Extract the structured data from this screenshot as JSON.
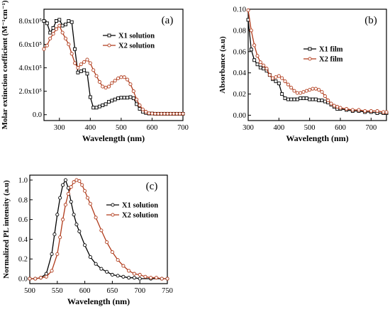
{
  "chart_data": [
    {
      "type": "line",
      "panel_label": "(a)",
      "xlabel": "Wavelength (nm)",
      "ylabel": "Molar extinction coefficient (M⁻¹cm⁻¹)",
      "xlim": [
        250,
        700
      ],
      "ylim": [
        -50000,
        900000
      ],
      "xticks": [
        300,
        400,
        500,
        600,
        700
      ],
      "yticks": [
        0,
        200000,
        400000,
        600000,
        800000
      ],
      "ytick_labels": [
        "0.0",
        "2.0x10⁵",
        "4.0x10⁵",
        "6.0x10⁵",
        "8.0x10⁵"
      ],
      "legend_position": "top-right",
      "series": [
        {
          "name": "X1 solution",
          "color": "#000000",
          "marker": "square-open",
          "x": [
            250,
            260,
            270,
            280,
            290,
            300,
            310,
            320,
            330,
            340,
            350,
            360,
            370,
            380,
            390,
            400,
            410,
            420,
            430,
            440,
            450,
            460,
            470,
            480,
            490,
            500,
            510,
            520,
            530,
            540,
            550,
            560,
            570,
            580,
            590,
            600,
            610,
            620,
            630,
            640,
            650,
            660,
            670,
            680,
            690,
            700
          ],
          "y": [
            800000,
            780000,
            700000,
            740000,
            800000,
            810000,
            760000,
            770000,
            800000,
            790000,
            560000,
            360000,
            370000,
            380000,
            350000,
            150000,
            60000,
            60000,
            70000,
            80000,
            90000,
            110000,
            120000,
            130000,
            140000,
            145000,
            145000,
            145000,
            150000,
            140000,
            90000,
            50000,
            25000,
            15000,
            10000,
            10000,
            8000,
            8000,
            8000,
            8000,
            8000,
            8000,
            8000,
            8000,
            8000,
            8000
          ]
        },
        {
          "name": "X2 solution",
          "color": "#b03a1a",
          "marker": "circle-open",
          "x": [
            250,
            260,
            270,
            280,
            290,
            300,
            310,
            320,
            330,
            340,
            350,
            360,
            370,
            380,
            390,
            400,
            410,
            420,
            430,
            440,
            450,
            460,
            470,
            480,
            490,
            500,
            510,
            520,
            530,
            540,
            550,
            560,
            570,
            580,
            590,
            600,
            610,
            620,
            630,
            640,
            650,
            660,
            670,
            680,
            690,
            700
          ],
          "y": [
            560000,
            590000,
            650000,
            690000,
            730000,
            760000,
            700000,
            650000,
            600000,
            520000,
            440000,
            400000,
            430000,
            450000,
            470000,
            440000,
            380000,
            330000,
            280000,
            240000,
            230000,
            240000,
            270000,
            290000,
            310000,
            320000,
            320000,
            300000,
            260000,
            200000,
            130000,
            80000,
            45000,
            25000,
            12000,
            10000,
            8000,
            8000,
            8000,
            8000,
            8000,
            8000,
            8000,
            8000,
            8000,
            8000
          ]
        }
      ]
    },
    {
      "type": "line",
      "panel_label": "(b)",
      "xlabel": "Wavelength (nm)",
      "ylabel": "Absorbance (a.u)",
      "xlim": [
        300,
        750
      ],
      "ylim": [
        -0.005,
        0.1
      ],
      "xticks": [
        300,
        400,
        500,
        600,
        700
      ],
      "yticks": [
        0.0,
        0.02,
        0.04,
        0.06,
        0.08,
        0.1
      ],
      "ytick_labels": [
        "0.00",
        "0.02",
        "0.04",
        "0.06",
        "0.08",
        "0.10"
      ],
      "legend_position": "top-right",
      "series": [
        {
          "name": "X1 film",
          "color": "#000000",
          "marker": "square-open",
          "x": [
            300,
            310,
            320,
            330,
            340,
            350,
            360,
            370,
            380,
            390,
            400,
            410,
            420,
            430,
            440,
            450,
            460,
            470,
            480,
            490,
            500,
            510,
            520,
            530,
            540,
            550,
            560,
            570,
            580,
            590,
            600,
            620,
            640,
            660,
            680,
            700,
            720,
            740,
            750
          ],
          "y": [
            0.09,
            0.062,
            0.052,
            0.048,
            0.045,
            0.044,
            0.042,
            0.038,
            0.034,
            0.032,
            0.03,
            0.02,
            0.016,
            0.015,
            0.015,
            0.015,
            0.015,
            0.016,
            0.016,
            0.016,
            0.015,
            0.015,
            0.015,
            0.014,
            0.014,
            0.013,
            0.012,
            0.01,
            0.008,
            0.006,
            0.006,
            0.005,
            0.004,
            0.004,
            0.003,
            0.003,
            0.002,
            0.002,
            0.002
          ]
        },
        {
          "name": "X2 film",
          "color": "#b03a1a",
          "marker": "circle-open",
          "x": [
            300,
            310,
            320,
            330,
            340,
            350,
            360,
            370,
            380,
            390,
            400,
            410,
            420,
            430,
            440,
            450,
            460,
            470,
            480,
            490,
            500,
            510,
            520,
            530,
            540,
            550,
            560,
            570,
            580,
            590,
            600,
            620,
            640,
            660,
            680,
            700,
            720,
            740,
            750
          ],
          "y": [
            0.099,
            0.08,
            0.066,
            0.056,
            0.05,
            0.047,
            0.044,
            0.038,
            0.035,
            0.036,
            0.037,
            0.035,
            0.032,
            0.029,
            0.026,
            0.023,
            0.021,
            0.021,
            0.022,
            0.023,
            0.024,
            0.025,
            0.025,
            0.024,
            0.022,
            0.018,
            0.014,
            0.011,
            0.009,
            0.008,
            0.007,
            0.006,
            0.005,
            0.005,
            0.004,
            0.004,
            0.004,
            0.003,
            0.003
          ]
        }
      ]
    },
    {
      "type": "line",
      "panel_label": "(c)",
      "xlabel": "Wavelength (nm)",
      "ylabel": "Normalized PL intensity (a.u)",
      "xlim": [
        500,
        750
      ],
      "ylim": [
        -0.05,
        1.05
      ],
      "xticks": [
        500,
        550,
        600,
        650,
        700,
        750
      ],
      "yticks": [
        0.0,
        0.2,
        0.4,
        0.6,
        0.8,
        1.0
      ],
      "ytick_labels": [
        "0.0",
        "0.2",
        "0.4",
        "0.6",
        "0.8",
        "1.0"
      ],
      "legend_position": "top-right",
      "series": [
        {
          "name": "X1 solution",
          "color": "#000000",
          "marker": "circle-open",
          "x": [
            500,
            510,
            520,
            530,
            540,
            545,
            550,
            555,
            560,
            565,
            570,
            575,
            580,
            585,
            590,
            600,
            610,
            620,
            630,
            640,
            650,
            660,
            670,
            680,
            690,
            700,
            720,
            740,
            750
          ],
          "y": [
            0.0,
            0.0,
            0.01,
            0.05,
            0.25,
            0.45,
            0.65,
            0.82,
            0.95,
            1.0,
            0.92,
            0.78,
            0.65,
            0.55,
            0.48,
            0.34,
            0.22,
            0.15,
            0.1,
            0.07,
            0.04,
            0.03,
            0.02,
            0.01,
            0.01,
            0.0,
            0.0,
            0.0,
            0.0
          ]
        },
        {
          "name": "X2 solution",
          "color": "#b03a1a",
          "marker": "circle-open",
          "x": [
            500,
            510,
            520,
            530,
            540,
            550,
            555,
            560,
            565,
            570,
            575,
            580,
            585,
            590,
            595,
            600,
            605,
            610,
            620,
            630,
            640,
            650,
            660,
            670,
            680,
            690,
            700,
            710,
            720,
            730,
            740,
            750
          ],
          "y": [
            0.0,
            0.0,
            0.01,
            0.02,
            0.08,
            0.25,
            0.42,
            0.6,
            0.75,
            0.86,
            0.93,
            0.98,
            1.0,
            0.99,
            0.95,
            0.89,
            0.82,
            0.76,
            0.62,
            0.49,
            0.37,
            0.27,
            0.19,
            0.13,
            0.08,
            0.05,
            0.04,
            0.02,
            0.01,
            0.01,
            0.0,
            0.0
          ]
        }
      ]
    }
  ]
}
